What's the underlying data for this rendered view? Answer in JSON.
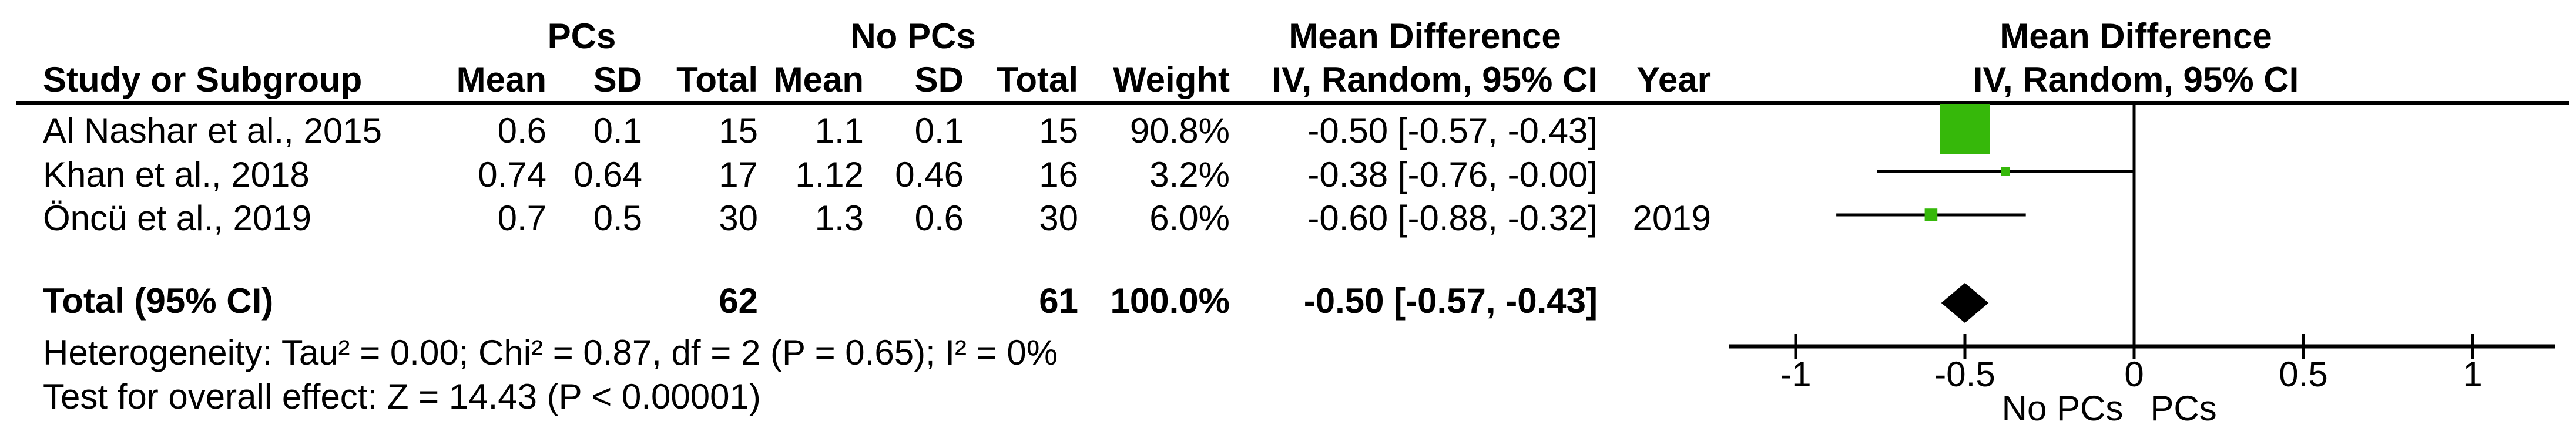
{
  "table": {
    "headers": {
      "group_pcs": "PCs",
      "group_nopcs": "No PCs",
      "mean_difference": "Mean Difference",
      "study": "Study or Subgroup",
      "mean": "Mean",
      "sd": "SD",
      "total": "Total",
      "weight": "Weight",
      "iv_random": "IV, Random, 95% CI",
      "year": "Year"
    },
    "rows": [
      {
        "study": "Al Nashar et al., 2015",
        "pcs_mean": "0.6",
        "pcs_sd": "0.1",
        "pcs_total": "15",
        "nopcs_mean": "1.1",
        "nopcs_sd": "0.1",
        "nopcs_total": "15",
        "weight": "90.8%",
        "ci": "-0.50 [-0.57, -0.43]",
        "year": ""
      },
      {
        "study": "Khan et al., 2018",
        "pcs_mean": "0.74",
        "pcs_sd": "0.64",
        "pcs_total": "17",
        "nopcs_mean": "1.12",
        "nopcs_sd": "0.46",
        "nopcs_total": "16",
        "weight": "3.2%",
        "ci": "-0.38 [-0.76, -0.00]",
        "year": ""
      },
      {
        "study": "Öncü et al., 2019",
        "pcs_mean": "0.7",
        "pcs_sd": "0.5",
        "pcs_total": "30",
        "nopcs_mean": "1.3",
        "nopcs_sd": "0.6",
        "nopcs_total": "30",
        "weight": "6.0%",
        "ci": "-0.60 [-0.88, -0.32]",
        "year": "2019"
      }
    ],
    "total_row": {
      "label": "Total (95% CI)",
      "pcs_total": "62",
      "nopcs_total": "61",
      "weight": "100.0%",
      "ci": "-0.50 [-0.57, -0.43]"
    },
    "heterogeneity": "Heterogeneity: Tau² = 0.00; Chi² = 0.87, df = 2 (P = 0.65); I² = 0%",
    "overall_effect": "Test for overall effect: Z = 14.43 (P < 0.00001)"
  },
  "plot": {
    "header_line1": "Mean Difference",
    "header_line2": "IV, Random, 95% CI",
    "favours_left": "No PCs",
    "favours_right": "PCs",
    "marker_color": "#36b80a",
    "line_color": "#000000"
  },
  "chart_data": {
    "type": "forest",
    "title": "Mean Difference — IV, Random, 95% CI (PCs vs No PCs)",
    "x_ticks": [
      -1,
      -0.5,
      0,
      0.5,
      1
    ],
    "xlim": [
      -1.2,
      1.24
    ],
    "studies": [
      {
        "name": "Al Nashar et al., 2015",
        "md": -0.5,
        "ci_low": -0.57,
        "ci_high": -0.43,
        "weight_pct": 90.8,
        "year": 2015
      },
      {
        "name": "Khan et al., 2018",
        "md": -0.38,
        "ci_low": -0.76,
        "ci_high": 0.0,
        "weight_pct": 3.2,
        "year": 2018
      },
      {
        "name": "Öncü et al., 2019",
        "md": -0.6,
        "ci_low": -0.88,
        "ci_high": -0.32,
        "weight_pct": 6.0,
        "year": 2019
      }
    ],
    "total": {
      "md": -0.5,
      "ci_low": -0.57,
      "ci_high": -0.43,
      "weight_pct": 100.0
    }
  }
}
